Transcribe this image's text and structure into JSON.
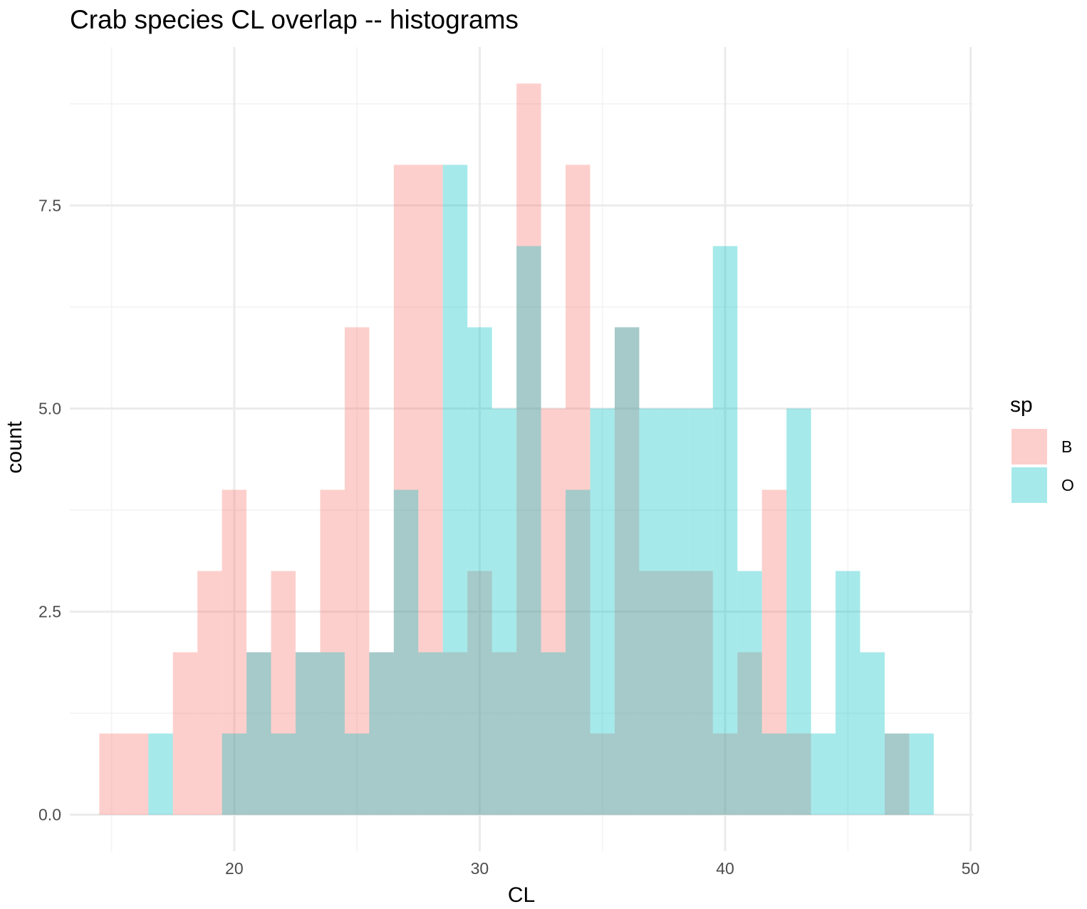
{
  "chart_data": {
    "type": "bar",
    "subtype": "overlapping-histogram",
    "title": "Crab species CL overlap -- histograms",
    "xlabel": "CL",
    "ylabel": "count",
    "xlim": [
      13.3,
      50.1
    ],
    "ylim": [
      -0.45,
      9.45
    ],
    "x_ticks": [
      20,
      30,
      40,
      50
    ],
    "x_tick_labels": [
      "20",
      "30",
      "40",
      "50"
    ],
    "y_ticks": [
      0,
      2.5,
      5,
      7.5
    ],
    "y_tick_labels": [
      "0.0",
      "2.5",
      "5.0",
      "7.5"
    ],
    "grid": true,
    "legend": {
      "title": "sp",
      "position": "right"
    },
    "bin_width": 1,
    "bin_centers": [
      15,
      16,
      17,
      18,
      19,
      20,
      21,
      22,
      23,
      24,
      25,
      26,
      27,
      28,
      29,
      30,
      31,
      32,
      33,
      34,
      35,
      36,
      37,
      38,
      39,
      40,
      41,
      42,
      43,
      44,
      45,
      46,
      47,
      48
    ],
    "series": [
      {
        "name": "B",
        "color": "#F8766D",
        "values": [
          1,
          1,
          0,
          2,
          3,
          4,
          2,
          3,
          2,
          4,
          6,
          2,
          8,
          8,
          2,
          3,
          2,
          9,
          5,
          8,
          1,
          6,
          3,
          3,
          3,
          1,
          2,
          4,
          1,
          0,
          0,
          0,
          1,
          0
        ]
      },
      {
        "name": "O",
        "color": "#00BFC4",
        "values": [
          0,
          0,
          1,
          0,
          0,
          1,
          2,
          1,
          2,
          2,
          1,
          2,
          4,
          2,
          8,
          6,
          5,
          7,
          2,
          4,
          5,
          6,
          5,
          5,
          5,
          7,
          3,
          1,
          5,
          1,
          3,
          2,
          1,
          1
        ]
      }
    ]
  }
}
